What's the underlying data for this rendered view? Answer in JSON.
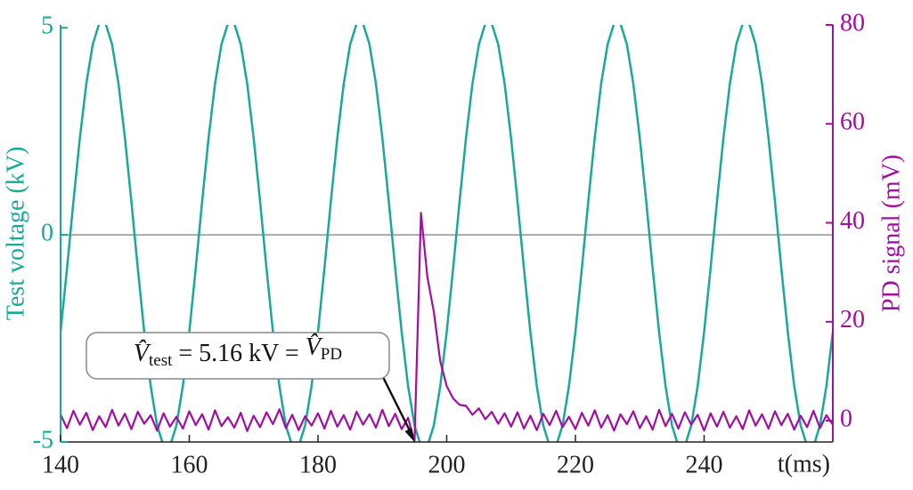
{
  "chart_data": {
    "type": "line",
    "xlabel": "t(ms)",
    "ylabel": "Test voltage (kV)",
    "y2label": "PD signal (mV)",
    "annotation": [
      "V̂",
      "test",
      " = 5.16 kV = ",
      "V̂",
      "PD"
    ],
    "xlim": [
      140,
      260
    ],
    "xticks": [
      140,
      160,
      180,
      200,
      220,
      240
    ],
    "ylim": [
      -5,
      5.07
    ],
    "yticks": [
      -5,
      0,
      5
    ],
    "y2lim": [
      -4.3,
      80
    ],
    "y2ticks": [
      0,
      20,
      40,
      60,
      80
    ],
    "zero_line": true,
    "x": [
      140,
      141,
      142,
      143,
      144,
      145,
      146,
      147,
      148,
      149,
      150,
      151,
      152,
      153,
      154,
      155,
      156,
      157,
      158,
      159,
      160,
      161,
      162,
      163,
      164,
      165,
      166,
      167,
      168,
      169,
      170,
      171,
      172,
      173,
      174,
      175,
      176,
      177,
      178,
      179,
      180,
      181,
      182,
      183,
      184,
      185,
      186,
      187,
      188,
      189,
      190,
      191,
      192,
      193,
      194,
      195,
      196,
      197,
      198,
      199,
      200,
      201,
      202,
      203,
      204,
      205,
      206,
      207,
      208,
      209,
      210,
      211,
      212,
      213,
      214,
      215,
      216,
      217,
      218,
      219,
      220,
      221,
      222,
      223,
      224,
      225,
      226,
      227,
      228,
      229,
      230,
      231,
      232,
      233,
      234,
      235,
      236,
      237,
      238,
      239,
      240,
      241,
      242,
      243,
      244,
      245,
      246,
      247,
      248,
      249,
      250,
      251,
      252,
      253,
      254,
      255,
      256,
      257,
      258,
      259,
      260
    ],
    "series": [
      {
        "name": "Test voltage",
        "color": "#1aa89a",
        "axis": "y",
        "values": [
          -2.34,
          -0.81,
          0.81,
          2.34,
          3.65,
          4.6,
          5.1,
          5.1,
          4.6,
          3.65,
          2.34,
          0.81,
          -0.81,
          -2.34,
          -3.65,
          -4.6,
          -5.1,
          -5.1,
          -4.6,
          -3.65,
          -2.34,
          -0.81,
          0.81,
          2.34,
          3.65,
          4.6,
          5.1,
          5.1,
          4.6,
          3.65,
          2.34,
          0.81,
          -0.81,
          -2.34,
          -3.65,
          -4.6,
          -5.1,
          -5.1,
          -4.6,
          -3.65,
          -2.34,
          -0.81,
          0.81,
          2.34,
          3.65,
          4.6,
          5.1,
          5.1,
          4.6,
          3.65,
          2.34,
          0.81,
          -0.81,
          -2.34,
          -3.65,
          -4.6,
          -5.1,
          -5.1,
          -4.6,
          -3.65,
          -2.34,
          -0.81,
          0.81,
          2.34,
          3.65,
          4.6,
          5.1,
          5.1,
          4.6,
          3.65,
          2.34,
          0.81,
          -0.81,
          -2.34,
          -3.65,
          -4.6,
          -5.1,
          -5.1,
          -4.6,
          -3.65,
          -2.34,
          -0.81,
          0.81,
          2.34,
          3.65,
          4.6,
          5.1,
          5.1,
          4.6,
          3.65,
          2.34,
          0.81,
          -0.81,
          -2.34,
          -3.65,
          -4.6,
          -5.1,
          -5.1,
          -4.6,
          -3.65,
          -2.34,
          -0.81,
          0.81,
          2.34,
          3.65,
          4.6,
          5.1,
          5.1,
          4.6,
          3.65,
          2.34,
          0.81,
          -0.81,
          -2.34,
          -3.65,
          -4.6,
          -5.1,
          -5.1,
          -4.6,
          -3.65,
          -2.34
        ]
      },
      {
        "name": "PD signal",
        "color": "#a0109e",
        "axis": "y2",
        "values": [
          1.2,
          -1.5,
          2.0,
          -0.8,
          1.6,
          -1.9,
          0.9,
          -1.3,
          2.2,
          -1.0,
          1.4,
          -1.7,
          1.8,
          -0.6,
          1.1,
          -2.0,
          1.5,
          -1.2,
          0.8,
          -1.6,
          1.9,
          -0.9,
          1.3,
          -1.8,
          2.1,
          -1.1,
          0.7,
          -1.4,
          1.6,
          -2.1,
          1.0,
          -1.3,
          1.7,
          -0.7,
          2.3,
          -1.5,
          1.2,
          -1.9,
          0.9,
          -1.0,
          1.5,
          -1.6,
          2.0,
          -1.2,
          1.1,
          -1.8,
          1.8,
          -0.8,
          1.3,
          -1.4,
          2.2,
          -1.1,
          1.4,
          -1.7,
          0.6,
          -4.3,
          42,
          29,
          22,
          12,
          7,
          4.5,
          3.2,
          3.0,
          1.2,
          2.5,
          0.3,
          1.8,
          -0.6,
          1.5,
          -1.2,
          1.7,
          -1.6,
          1.0,
          -1.9,
          1.4,
          -0.9,
          2.0,
          -1.3,
          0.8,
          -1.7,
          1.6,
          -1.0,
          2.1,
          -1.4,
          1.1,
          -2.0,
          1.3,
          -0.7,
          1.9,
          -1.5,
          0.9,
          -1.8,
          2.2,
          -1.1,
          1.4,
          -1.6,
          1.7,
          -0.8,
          1.2,
          -2.0,
          1.5,
          -1.2,
          1.8,
          -1.4,
          0.9,
          -1.7,
          2.1,
          -1.0,
          1.3,
          -1.6,
          1.9,
          -0.9,
          1.4,
          -1.8,
          1.0,
          -1.3,
          2.0,
          -1.5,
          1.1,
          -0.8
        ]
      }
    ]
  }
}
